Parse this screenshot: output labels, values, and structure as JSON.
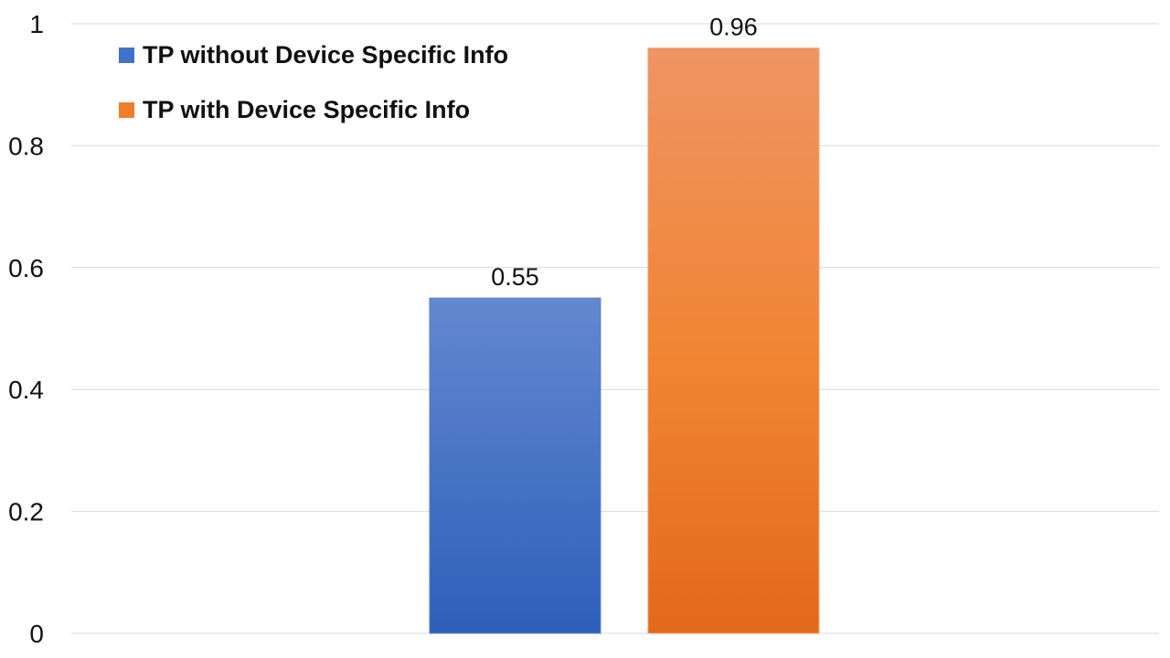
{
  "chart_data": {
    "type": "bar",
    "categories": [
      ""
    ],
    "series": [
      {
        "name": "TP without Device Specific Info",
        "values": [
          0.55
        ],
        "color": "#3f72c9",
        "value_label": "0.55"
      },
      {
        "name": "TP with Device Specific Info",
        "values": [
          0.96
        ],
        "color": "#ef7d2b",
        "value_label": "0.96"
      }
    ],
    "ylim": [
      0,
      1
    ],
    "yticks": [
      0,
      0.2,
      0.4,
      0.6,
      0.8,
      1
    ],
    "ytick_labels": [
      "0",
      "0.2",
      "0.4",
      "0.6",
      "0.8",
      "1"
    ],
    "xlabel": "",
    "ylabel": "",
    "title": "",
    "grid": true,
    "legend_position": "top-left",
    "gradient_fill": true
  }
}
